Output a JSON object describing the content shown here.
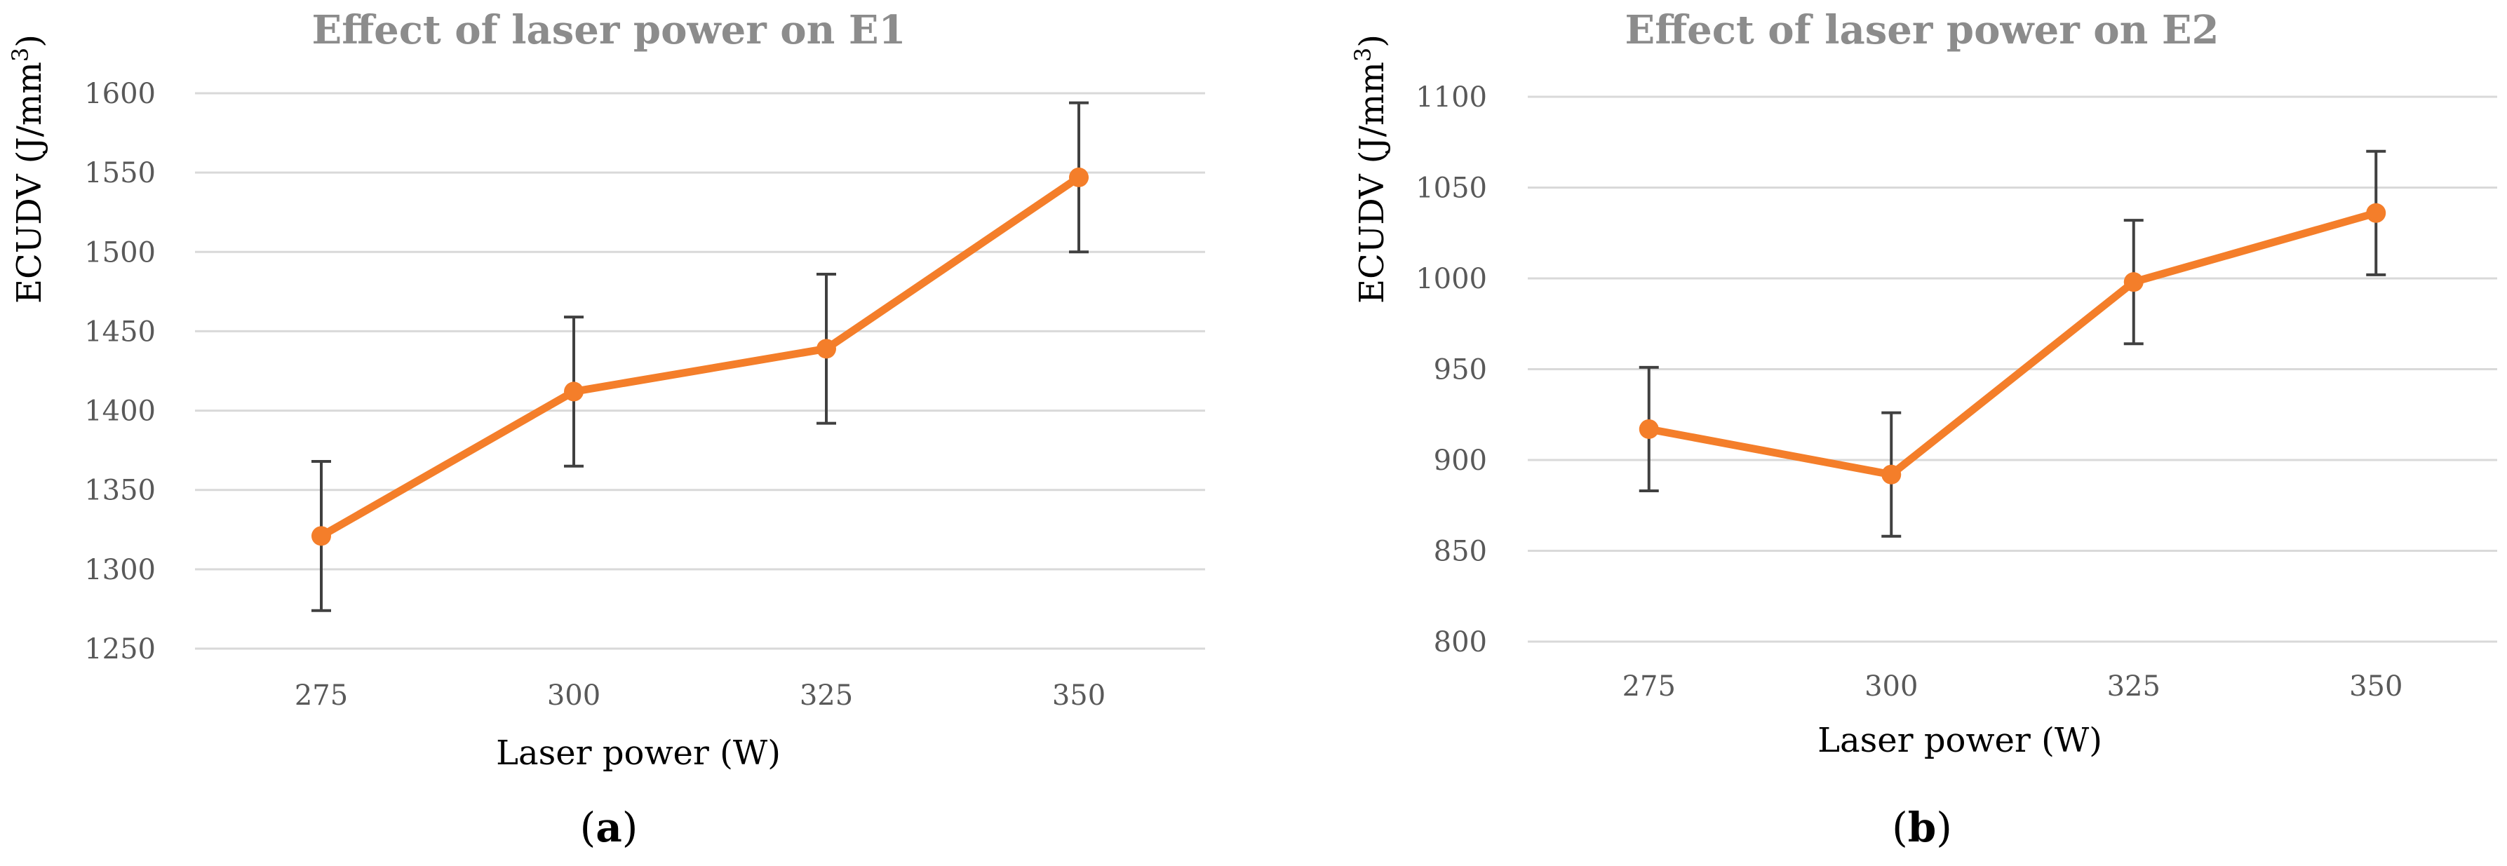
{
  "colors": {
    "series": "#f47e2a",
    "title": "#8c8c8c",
    "ticks": "#595959",
    "grid": "#d9d9d9",
    "error_bar": "#404040"
  },
  "chart_data": [
    {
      "type": "line",
      "title": "Effect of laser power on E1",
      "xlabel": "Laser power (W)",
      "ylabel": {
        "main": "ECUDV (J/mm",
        "sup": "3",
        "close": ")"
      },
      "panel_label": {
        "open": "(",
        "letter": "a",
        "close": ")"
      },
      "categories": [
        "275",
        "300",
        "325",
        "350"
      ],
      "series": [
        {
          "values": [
            1321,
            1412,
            1439,
            1547
          ],
          "error": [
            47,
            47,
            47,
            47
          ]
        }
      ],
      "ylim": [
        1250,
        1600
      ],
      "yticks": [
        1250,
        1300,
        1350,
        1400,
        1450,
        1500,
        1550,
        1600
      ],
      "grid": true,
      "legend": "none"
    },
    {
      "type": "line",
      "title": "Effect of laser power on E2",
      "xlabel": "Laser power (W)",
      "ylabel": {
        "main": "ECUDV (J/mm",
        "sup": "3",
        "close": ")"
      },
      "panel_label": {
        "open": "(",
        "letter": "b",
        "close": ")"
      },
      "categories": [
        "275",
        "300",
        "325",
        "350"
      ],
      "series": [
        {
          "values": [
            917,
            892,
            998,
            1036
          ],
          "error": [
            34,
            34,
            34,
            34
          ]
        }
      ],
      "ylim": [
        800,
        1100
      ],
      "yticks": [
        800,
        850,
        900,
        950,
        1000,
        1050,
        1100
      ],
      "grid": true,
      "legend": "none"
    }
  ]
}
